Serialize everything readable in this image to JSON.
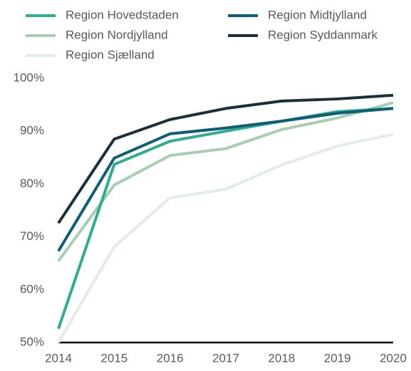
{
  "chart_data": {
    "type": "line",
    "categories": [
      "2014",
      "2015",
      "2016",
      "2017",
      "2018",
      "2019",
      "2020"
    ],
    "series": [
      {
        "name": "Region Hovedstaden",
        "color": "#2eae8c",
        "values": [
          52.6,
          83.7,
          88.1,
          90.0,
          91.9,
          93.7,
          94.3
        ]
      },
      {
        "name": "Region Midtjylland",
        "color": "#0e5e7a",
        "values": [
          67.3,
          84.9,
          89.5,
          90.6,
          91.9,
          93.4,
          94.3
        ]
      },
      {
        "name": "Region Nordjylland",
        "color": "#a8ceb1",
        "values": [
          65.4,
          79.8,
          85.4,
          86.7,
          90.3,
          92.5,
          95.4
        ]
      },
      {
        "name": "Region Syddanmark",
        "color": "#1b2f3c",
        "values": [
          72.6,
          88.5,
          92.2,
          94.3,
          95.7,
          96.1,
          96.8
        ]
      },
      {
        "name": "Region Sjælland",
        "color": "#e2eee5",
        "values": [
          50.0,
          68.1,
          77.4,
          79.0,
          83.6,
          87.2,
          89.4
        ]
      }
    ],
    "ylim": [
      50,
      100
    ],
    "yticks": [
      {
        "value": 50,
        "label": "50%"
      },
      {
        "value": 60,
        "label": "60%"
      },
      {
        "value": 70,
        "label": "70%"
      },
      {
        "value": 80,
        "label": "80%"
      },
      {
        "value": 90,
        "label": "90%"
      },
      {
        "value": 100,
        "label": "100%"
      }
    ],
    "grid": false,
    "legend": "top"
  }
}
